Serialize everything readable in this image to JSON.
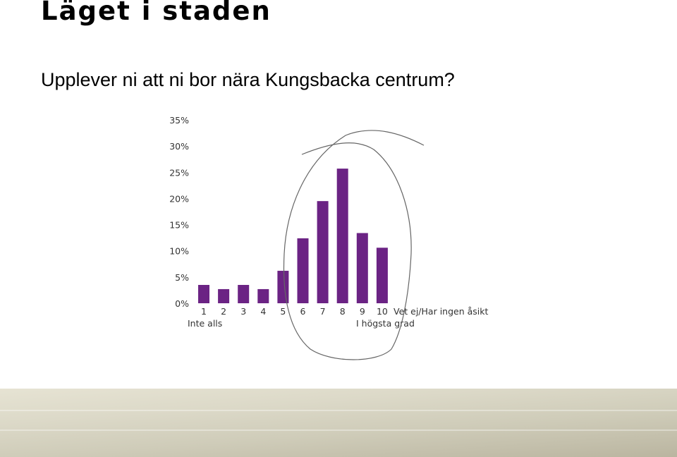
{
  "slide": {
    "title": "Läget i staden",
    "subtitle": "Upplever ni att ni bor nära Kungsbacka centrum?"
  },
  "chart_data": {
    "type": "bar",
    "title": "",
    "xlabel": "",
    "ylabel": "",
    "ylim": [
      0,
      35
    ],
    "y_ticks": [
      "0%",
      "5%",
      "10%",
      "15%",
      "20%",
      "25%",
      "30%",
      "35%"
    ],
    "y_tick_values": [
      0,
      5,
      10,
      15,
      20,
      25,
      30,
      35
    ],
    "categories": [
      "1",
      "2",
      "3",
      "4",
      "5",
      "6",
      "7",
      "8",
      "9",
      "10",
      "Vet ej/Har ingen åsikt"
    ],
    "values": [
      3.5,
      2.7,
      3.5,
      2.7,
      6.2,
      12.4,
      19.5,
      25.7,
      13.4,
      10.6,
      0
    ],
    "scale_low_label": "Inte alls",
    "scale_high_label": "I högsta grad",
    "grid": false,
    "bar_color": "#6b2384"
  },
  "colors": {
    "bar": "#6b2384",
    "annotation": "#666666"
  }
}
